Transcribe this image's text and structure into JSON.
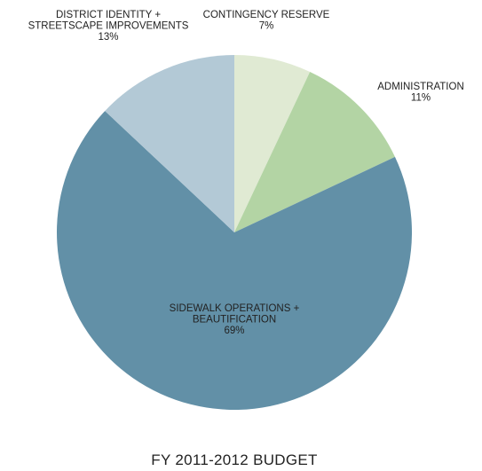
{
  "chart_data": {
    "type": "pie",
    "title": "FY 2011-2012 BUDGET",
    "slices": [
      {
        "label_lines": [
          "CONTINGENCY RESERVE"
        ],
        "value": 7,
        "display": "7%",
        "color": "#e0ead3"
      },
      {
        "label_lines": [
          "ADMINISTRATION"
        ],
        "value": 11,
        "display": "11%",
        "color": "#b3d4a4"
      },
      {
        "label_lines": [
          "SIDEWALK OPERATIONS +",
          "BEAUTIFICATION"
        ],
        "value": 69,
        "display": "69%",
        "color": "#6290a7"
      },
      {
        "label_lines": [
          "DISTRICT IDENTITY +",
          "STREETSCAPE IMPROVEMENTS"
        ],
        "value": 13,
        "display": "13%",
        "color": "#b3c9d6"
      }
    ]
  }
}
